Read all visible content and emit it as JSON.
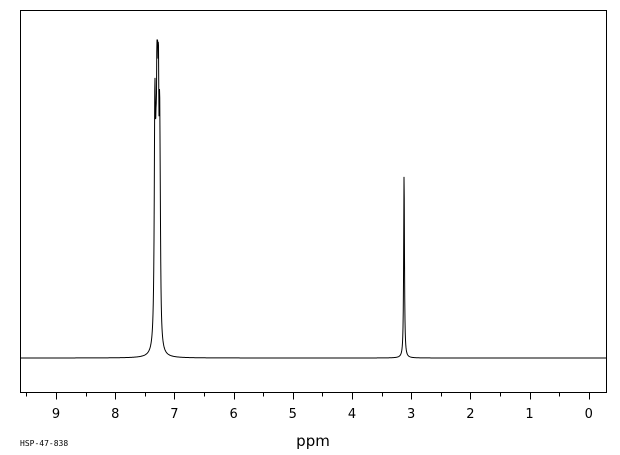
{
  "chart_data": {
    "type": "line",
    "title": "",
    "xlabel": "ppm",
    "ylabel": "",
    "xlim": [
      9.6,
      -0.3
    ],
    "x_reversed": true,
    "ylim": [
      -0.1,
      1.05
    ],
    "grid": false,
    "legend": "none",
    "ticks_major": [
      9,
      8,
      7,
      6,
      5,
      4,
      3,
      2,
      1,
      0
    ],
    "tick_labels": [
      "9",
      "8",
      "7",
      "6",
      "5",
      "4",
      "3",
      "2",
      "1",
      "0"
    ],
    "ticks_minor": [
      9.5,
      8.5,
      7.5,
      6.5,
      5.5,
      4.5,
      3.5,
      2.5,
      1.5,
      0.5
    ],
    "baseline": 0,
    "peaks": [
      {
        "ppm": 7.33,
        "height": 0.7,
        "width": 0.012
      },
      {
        "ppm": 7.31,
        "height": 0.35,
        "width": 0.012
      },
      {
        "ppm": 7.29,
        "height": 1.0,
        "width": 0.01
      },
      {
        "ppm": 7.27,
        "height": 0.62,
        "width": 0.01
      },
      {
        "ppm": 7.25,
        "height": 0.54,
        "width": 0.01
      },
      {
        "ppm": 7.24,
        "height": 0.2,
        "width": 0.01
      },
      {
        "ppm": 3.12,
        "height": 0.58,
        "width": 0.008
      }
    ],
    "line_color": "#000000"
  },
  "footer": {
    "sample_id": "HSP-47-838"
  }
}
